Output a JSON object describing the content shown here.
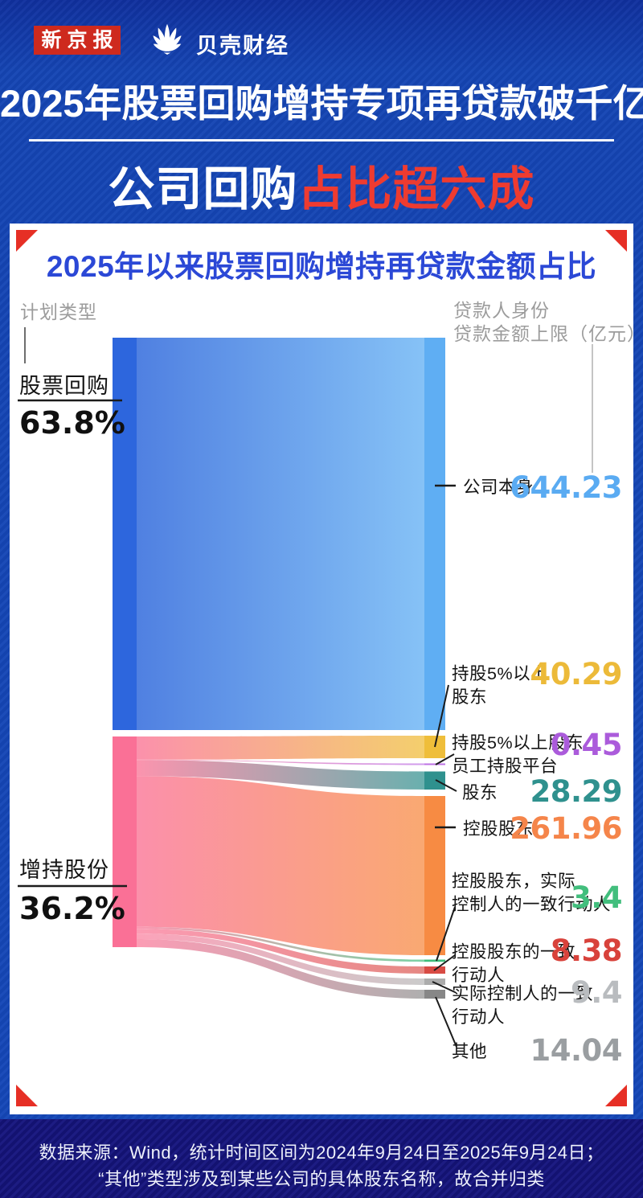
{
  "header": {
    "logo_xjb": "新京报",
    "logo_beike": "贝壳财经",
    "title": "2025年股票回购增持专项再贷款破千亿",
    "subtitle_white": "公司回购",
    "subtitle_red": "占比超六成"
  },
  "card": {
    "title": "2025年以来股票回购增持再贷款金额占比",
    "left_axis_header": "计划类型",
    "right_axis_header_line1": "贷款人身份",
    "right_axis_header_line2": "贷款金额上限（亿元）"
  },
  "chart_data": {
    "type": "sankey",
    "title": "2025年以来股票回购增持再贷款金额占比",
    "unit": "亿元",
    "left_nodes": [
      {
        "label": "股票回购",
        "percent": "63.8%",
        "color": "#2d66dd",
        "flow_color": "#4a7ce0"
      },
      {
        "label": "增持股份",
        "percent": "36.2%",
        "color": "#fa7096",
        "flow_color": "#fb8ba7"
      }
    ],
    "links": [
      {
        "source": "股票回购",
        "target": "公司本身",
        "value": 644.23,
        "color": "#5faef3"
      },
      {
        "source": "增持股份",
        "target": "持股5%以上股东",
        "value": 40.29,
        "color": "#efbe3a"
      },
      {
        "source": "增持股份",
        "target": "持股5%以上股东员工持股平台",
        "value": 0.45,
        "color": "#bd72e5"
      },
      {
        "source": "增持股份",
        "target": "股东",
        "value": 28.29,
        "color": "#2f918e"
      },
      {
        "source": "增持股份",
        "target": "控股股东",
        "value": 261.96,
        "color": "#f78b43"
      },
      {
        "source": "增持股份",
        "target": "控股股东，实际控制人的一致行动人",
        "value": 3.4,
        "color": "#3dbd7b"
      },
      {
        "source": "增持股份",
        "target": "控股股东的一致行动人",
        "value": 8.38,
        "color": "#d84b44"
      },
      {
        "source": "增持股份",
        "target": "实际控制人的一致行动人",
        "value": 9.4,
        "color": "#acacac"
      },
      {
        "source": "增持股份",
        "target": "其他",
        "value": 14.04,
        "color": "#878787"
      }
    ]
  },
  "right_labels": [
    {
      "line1": "公司本身",
      "value": "644.23",
      "value_color": "#5aabf2"
    },
    {
      "line1": "持股5%以上",
      "line2": "股东",
      "value": "40.29",
      "value_color": "#ecba39"
    },
    {
      "line1": "持股5%以上股东",
      "line2": "员工持股平台",
      "value": "0.45",
      "value_color": "#ab5bdb"
    },
    {
      "line1": "股东",
      "value": "28.29",
      "value_color": "#2f918e"
    },
    {
      "line1": "控股股东",
      "value": "261.96",
      "value_color": "#f5854a"
    },
    {
      "line1": "控股股东，实际",
      "line2": "控制人的一致行动人",
      "value": "3.4",
      "value_color": "#42be7d"
    },
    {
      "line1": "控股股东的一致",
      "line2": "行动人",
      "value": "8.38",
      "value_color": "#d8423b"
    },
    {
      "line1": "实际控制人的一致",
      "line2": "行动人",
      "value": "9.4",
      "value_color": "#b9bcbf"
    },
    {
      "line1": "其他",
      "value": "14.04",
      "value_color": "#9a9ea1"
    }
  ],
  "footer": {
    "line1": "数据来源：Wind，统计时间区间为2024年9月24日至2025年9月24日；",
    "line2": "“其他”类型涉及到某些公司的具体股东名称，故合并归类"
  }
}
